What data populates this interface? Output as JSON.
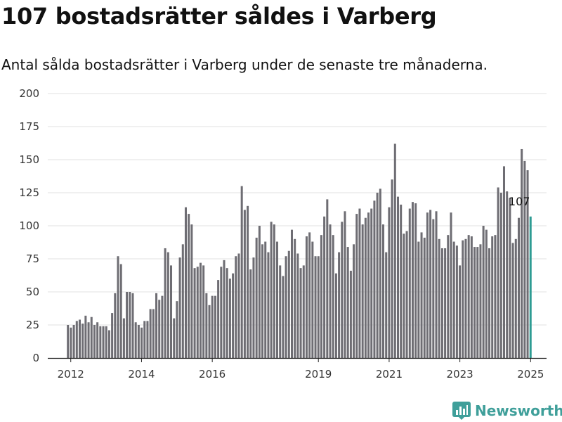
{
  "header": {
    "title": "107 bostadsrätter såldes i Varberg",
    "subtitle": "Antal sålda bostadsrätter i Varberg under de senaste tre månaderna."
  },
  "brand": {
    "name": "Newsworthy",
    "icon": "bar-chart-logo-icon",
    "color": "#3f9f9a"
  },
  "colors": {
    "bar": "#6e6d73",
    "highlight": "#2e9c93",
    "grid": "#e2e2e2",
    "axis": "#222222"
  },
  "chart_data": {
    "type": "bar",
    "title": "107 bostadsrätter såldes i Varberg",
    "subtitle": "Antal sålda bostadsrätter i Varberg under de senaste tre månaderna.",
    "xlabel": "",
    "ylabel": "",
    "ylim": [
      0,
      200
    ],
    "y_ticks": [
      0,
      25,
      50,
      75,
      100,
      125,
      150,
      175,
      200
    ],
    "x_range": [
      2011.35,
      2025.45
    ],
    "x_ticks": [
      {
        "label": "2012",
        "x": 2012.0
      },
      {
        "label": "2014",
        "x": 2014.0
      },
      {
        "label": "2016",
        "x": 2016.0
      },
      {
        "label": "2019",
        "x": 2019.0
      },
      {
        "label": "2021",
        "x": 2021.0
      },
      {
        "label": "2023",
        "x": 2023.0
      },
      {
        "label": "2025",
        "x": 2025.0
      }
    ],
    "grid": true,
    "legend": "none",
    "start_year": 2011.92,
    "step_years": 0.0833,
    "values": [
      25,
      23,
      25,
      28,
      29,
      26,
      32,
      27,
      31,
      25,
      27,
      24,
      24,
      24,
      21,
      34,
      49,
      77,
      71,
      30,
      50,
      50,
      49,
      27,
      25,
      23,
      28,
      28,
      37,
      37,
      49,
      44,
      47,
      83,
      80,
      70,
      30,
      43,
      76,
      86,
      114,
      109,
      101,
      68,
      69,
      72,
      70,
      49,
      40,
      47,
      47,
      59,
      69,
      74,
      68,
      60,
      64,
      77,
      79,
      130,
      112,
      115,
      67,
      76,
      91,
      100,
      86,
      88,
      80,
      103,
      101,
      88,
      70,
      62,
      77,
      81,
      97,
      90,
      79,
      68,
      70,
      92,
      95,
      88,
      77,
      77,
      93,
      107,
      120,
      101,
      93,
      64,
      80,
      103,
      111,
      84,
      66,
      86,
      109,
      113,
      101,
      106,
      110,
      113,
      119,
      125,
      128,
      101,
      80,
      114,
      135,
      162,
      122,
      116,
      94,
      96,
      113,
      118,
      117,
      88,
      95,
      91,
      110,
      112,
      105,
      111,
      90,
      83,
      83,
      93,
      110,
      88,
      85,
      70,
      89,
      90,
      93,
      92,
      84,
      84,
      86,
      100,
      97,
      83,
      92,
      93,
      129,
      125,
      145,
      126,
      121,
      87,
      90,
      106,
      158,
      149,
      142,
      107
    ],
    "highlight_last": true,
    "annotation": {
      "text": "107",
      "value": 107
    }
  }
}
